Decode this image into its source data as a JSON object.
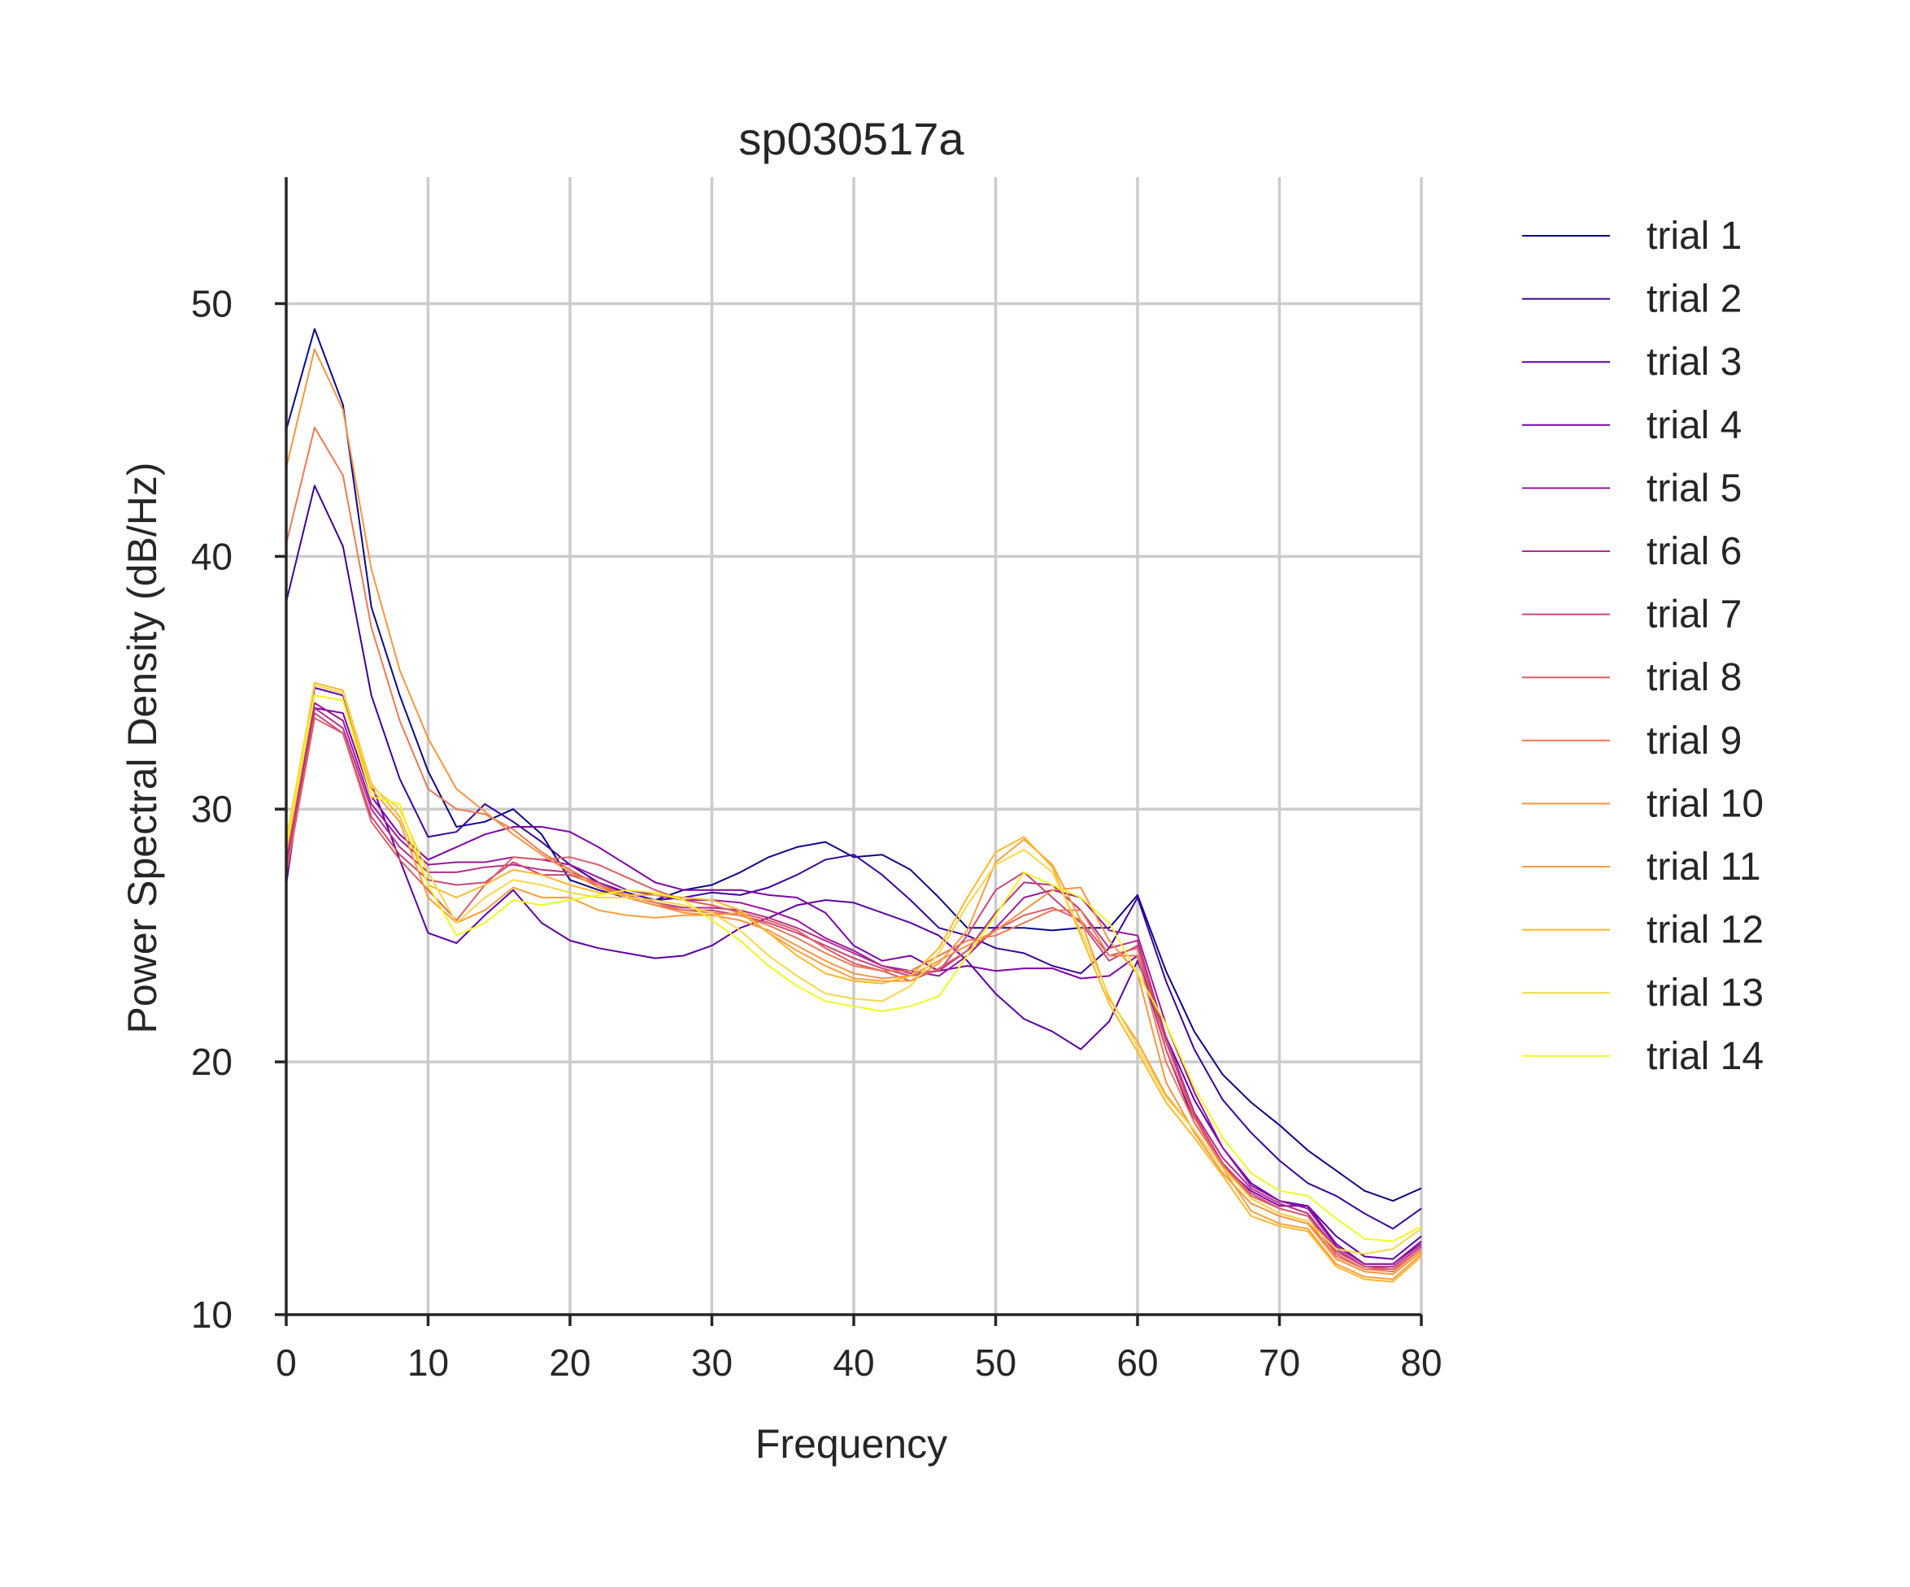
{
  "chart_data": {
    "type": "line",
    "title": "sp030517a",
    "xlabel": "Frequency",
    "ylabel": "Power Spectral Density (dB/Hz)",
    "xlim": [
      0,
      80
    ],
    "ylim": [
      10,
      55
    ],
    "xticks": [
      0,
      10,
      20,
      30,
      40,
      50,
      60,
      70,
      80
    ],
    "yticks": [
      10,
      20,
      30,
      40,
      50
    ],
    "grid": true,
    "legend_position": "right, outside plot",
    "x": [
      0,
      2,
      4,
      6,
      8,
      10,
      12,
      14,
      16,
      18,
      20,
      22,
      24,
      26,
      28,
      30,
      32,
      34,
      36,
      38,
      40,
      42,
      44,
      46,
      48,
      50,
      52,
      54,
      56,
      58,
      60,
      62,
      64,
      66,
      68,
      70,
      72,
      74,
      76,
      78,
      80
    ],
    "series": [
      {
        "name": "trial 1",
        "color": "#0d0887",
        "values": [
          45.0,
          49.0,
          46.0,
          38.0,
          34.5,
          31.5,
          29.3,
          29.5,
          30.0,
          29.0,
          27.2,
          26.8,
          26.5,
          26.4,
          26.8,
          27.0,
          27.5,
          28.1,
          28.5,
          28.7,
          28.1,
          28.2,
          27.6,
          26.5,
          25.3,
          25.3,
          25.3,
          25.2,
          25.3,
          25.3,
          26.6,
          23.6,
          21.2,
          19.5,
          18.4,
          17.5,
          16.5,
          15.7,
          14.9,
          14.5,
          15.0
        ]
      },
      {
        "name": "trial 2",
        "color": "#3b049a",
        "values": [
          38.2,
          42.8,
          40.4,
          34.5,
          31.2,
          28.9,
          29.1,
          30.2,
          29.5,
          28.7,
          27.8,
          27.1,
          26.7,
          26.4,
          26.5,
          26.7,
          26.6,
          26.9,
          27.4,
          28.0,
          28.2,
          27.4,
          26.4,
          25.3,
          25.0,
          24.5,
          24.3,
          23.8,
          23.5,
          24.5,
          26.5,
          23.2,
          20.5,
          18.5,
          17.2,
          16.1,
          15.2,
          14.7,
          14.0,
          13.4,
          14.2
        ]
      },
      {
        "name": "trial 3",
        "color": "#5c01a6",
        "values": [
          27.0,
          34.8,
          34.5,
          31.0,
          28.0,
          25.1,
          24.7,
          25.8,
          26.8,
          25.5,
          24.8,
          24.5,
          24.3,
          24.1,
          24.2,
          24.6,
          25.3,
          25.7,
          26.2,
          26.4,
          26.3,
          25.9,
          25.5,
          25.0,
          24.0,
          22.7,
          21.7,
          21.2,
          20.5,
          21.6,
          24.0,
          21.0,
          18.5,
          16.6,
          15.2,
          14.5,
          14.3,
          13.1,
          12.3,
          12.2,
          13.1
        ]
      },
      {
        "name": "trial 4",
        "color": "#7e03a8",
        "values": [
          28.5,
          34.0,
          33.8,
          30.5,
          29.0,
          28.0,
          28.5,
          29.0,
          29.3,
          29.3,
          29.1,
          28.5,
          27.8,
          27.1,
          26.8,
          26.8,
          26.8,
          26.6,
          26.5,
          25.9,
          24.6,
          24.0,
          24.2,
          23.6,
          23.8,
          23.6,
          23.7,
          23.7,
          23.3,
          23.4,
          24.2,
          20.5,
          17.6,
          15.9,
          14.9,
          14.3,
          14.3,
          12.8,
          12.0,
          12.0,
          12.9
        ]
      },
      {
        "name": "trial 5",
        "color": "#9c179e",
        "values": [
          28.0,
          34.2,
          33.5,
          30.2,
          28.8,
          27.8,
          27.9,
          27.9,
          28.1,
          28.0,
          27.8,
          27.3,
          26.8,
          26.6,
          26.4,
          26.4,
          26.3,
          26.0,
          25.6,
          24.9,
          24.4,
          23.8,
          23.6,
          23.4,
          24.2,
          25.3,
          26.5,
          26.8,
          26.5,
          25.2,
          25.0,
          21.5,
          18.8,
          16.6,
          15.1,
          14.5,
          14.2,
          12.7,
          12.0,
          12.0,
          12.8
        ]
      },
      {
        "name": "trial 6",
        "color": "#b52f8c",
        "values": [
          27.8,
          34.0,
          33.2,
          30.0,
          28.5,
          27.5,
          27.5,
          27.7,
          27.8,
          27.6,
          27.5,
          27.1,
          26.6,
          26.3,
          26.1,
          26.1,
          26.0,
          25.7,
          25.3,
          24.8,
          24.3,
          23.8,
          23.5,
          23.6,
          24.4,
          25.9,
          27.1,
          27.0,
          26.0,
          24.5,
          24.8,
          21.0,
          18.0,
          16.2,
          15.0,
          14.4,
          14.0,
          12.6,
          11.9,
          11.9,
          12.7
        ]
      },
      {
        "name": "trial 7",
        "color": "#cc4778",
        "values": [
          27.6,
          33.8,
          33.0,
          29.7,
          28.2,
          27.2,
          27.0,
          27.1,
          27.9,
          27.4,
          27.4,
          27.0,
          26.5,
          26.2,
          26.0,
          26.0,
          25.8,
          25.5,
          25.1,
          24.6,
          24.1,
          23.7,
          23.4,
          23.6,
          25.0,
          26.8,
          27.5,
          26.5,
          25.5,
          24.0,
          24.6,
          20.8,
          17.9,
          16.0,
          14.8,
          14.2,
          13.9,
          12.5,
          11.9,
          11.8,
          12.6
        ]
      },
      {
        "name": "trial 8",
        "color": "#de5f65",
        "values": [
          27.4,
          33.6,
          33.0,
          29.5,
          28.0,
          26.8,
          25.6,
          27.0,
          28.1,
          28.0,
          28.1,
          27.8,
          27.3,
          26.8,
          26.4,
          26.2,
          25.9,
          25.6,
          25.2,
          24.5,
          23.9,
          23.6,
          23.2,
          23.7,
          24.4,
          25.2,
          25.8,
          26.1,
          25.6,
          24.2,
          24.5,
          20.5,
          17.8,
          15.9,
          14.7,
          14.2,
          13.9,
          12.4,
          11.8,
          11.8,
          12.6
        ]
      },
      {
        "name": "trial 9",
        "color": "#ed7953",
        "values": [
          40.5,
          45.1,
          43.2,
          37.2,
          33.5,
          30.8,
          30.0,
          29.8,
          29.2,
          28.3,
          27.6,
          27.0,
          26.6,
          26.3,
          26.0,
          25.9,
          25.8,
          25.4,
          24.9,
          24.3,
          23.8,
          23.6,
          23.6,
          24.2,
          24.8,
          25.0,
          25.5,
          26.0,
          26.0,
          24.2,
          24.2,
          20.0,
          17.6,
          15.9,
          14.6,
          14.0,
          13.7,
          12.3,
          11.8,
          11.7,
          12.6
        ]
      },
      {
        "name": "trial 10",
        "color": "#f89540",
        "values": [
          43.5,
          48.2,
          45.8,
          39.5,
          35.5,
          32.8,
          30.8,
          29.9,
          29.0,
          28.2,
          27.5,
          26.9,
          26.5,
          26.2,
          25.9,
          25.8,
          25.6,
          25.2,
          24.6,
          24.0,
          23.5,
          23.3,
          23.4,
          24.0,
          24.6,
          25.2,
          26.0,
          26.8,
          26.9,
          24.8,
          23.5,
          19.2,
          17.2,
          15.6,
          14.4,
          13.9,
          13.6,
          12.2,
          11.7,
          11.6,
          12.5
        ]
      },
      {
        "name": "trial 11",
        "color": "#fb9f3a",
        "values": [
          28.2,
          34.5,
          34.3,
          30.8,
          29.5,
          26.5,
          25.5,
          26.0,
          26.9,
          26.5,
          26.5,
          26.0,
          25.8,
          25.7,
          25.8,
          25.8,
          25.9,
          25.1,
          24.4,
          23.8,
          23.3,
          23.2,
          23.2,
          23.9,
          25.2,
          27.9,
          28.8,
          27.8,
          25.6,
          22.5,
          20.8,
          18.7,
          17.3,
          15.8,
          14.1,
          13.6,
          13.4,
          12.0,
          11.5,
          11.4,
          12.4
        ]
      },
      {
        "name": "trial 12",
        "color": "#feb82c",
        "values": [
          28.6,
          35.0,
          34.7,
          31.0,
          29.7,
          27.0,
          26.5,
          27.0,
          27.6,
          27.4,
          27.0,
          26.7,
          26.6,
          26.6,
          26.5,
          26.4,
          26.0,
          25.1,
          24.2,
          23.5,
          23.2,
          23.1,
          23.4,
          24.5,
          26.5,
          28.3,
          28.9,
          27.7,
          25.0,
          22.3,
          20.4,
          18.4,
          17.0,
          15.5,
          13.9,
          13.5,
          13.3,
          11.9,
          11.4,
          11.3,
          12.3
        ]
      },
      {
        "name": "trial 13",
        "color": "#f6d746",
        "values": [
          28.8,
          34.9,
          34.6,
          30.9,
          30.0,
          27.5,
          25.5,
          26.5,
          27.2,
          27.0,
          26.7,
          26.5,
          26.5,
          26.4,
          26.2,
          25.9,
          25.2,
          24.2,
          23.4,
          22.7,
          22.5,
          22.4,
          23.0,
          24.3,
          26.2,
          27.8,
          28.4,
          27.5,
          25.2,
          22.6,
          20.6,
          18.6,
          17.3,
          15.8,
          14.6,
          14.0,
          13.7,
          12.6,
          12.4,
          12.6,
          13.4
        ]
      },
      {
        "name": "trial 14",
        "color": "#f0f921",
        "values": [
          28.5,
          34.5,
          34.3,
          30.5,
          30.2,
          27.0,
          25.0,
          25.5,
          26.4,
          26.2,
          26.4,
          26.6,
          26.8,
          26.7,
          26.4,
          25.6,
          24.8,
          23.8,
          23.0,
          22.4,
          22.2,
          22.0,
          22.2,
          22.6,
          24.2,
          25.8,
          27.5,
          27.0,
          26.5,
          25.5,
          23.5,
          21.5,
          19.0,
          17.0,
          15.6,
          14.9,
          14.7,
          13.8,
          13.0,
          12.9,
          13.5
        ]
      }
    ]
  }
}
